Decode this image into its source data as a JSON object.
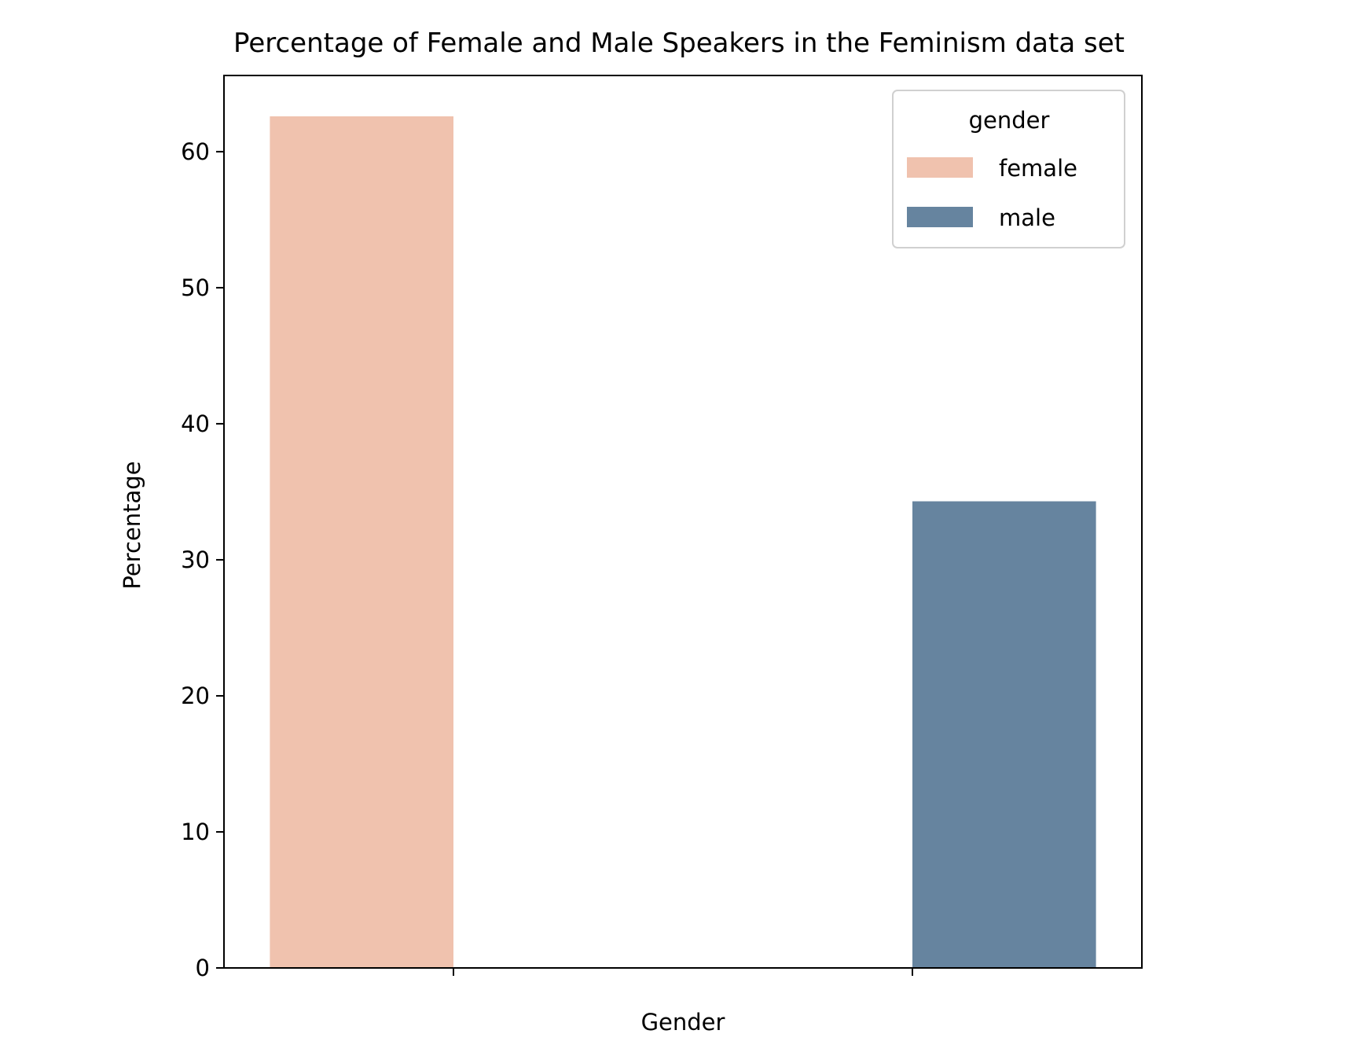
{
  "chart_data": {
    "type": "bar",
    "title": "Percentage of Female and Male Speakers in the Feminism data set",
    "xlabel": "Gender",
    "ylabel": "Percentage",
    "ylim": [
      0,
      65.6
    ],
    "yticks": [
      0,
      10,
      20,
      30,
      40,
      50,
      60
    ],
    "grid": false,
    "categories": [
      "",
      ""
    ],
    "series": [
      {
        "name": "female",
        "color": "#f0c2ae",
        "values": [
          62.6,
          null
        ]
      },
      {
        "name": "male",
        "color": "#66849f",
        "values": [
          null,
          34.3
        ]
      }
    ],
    "legend": {
      "title": "gender",
      "placement": "top-right",
      "entries": [
        "female",
        "male"
      ]
    }
  }
}
